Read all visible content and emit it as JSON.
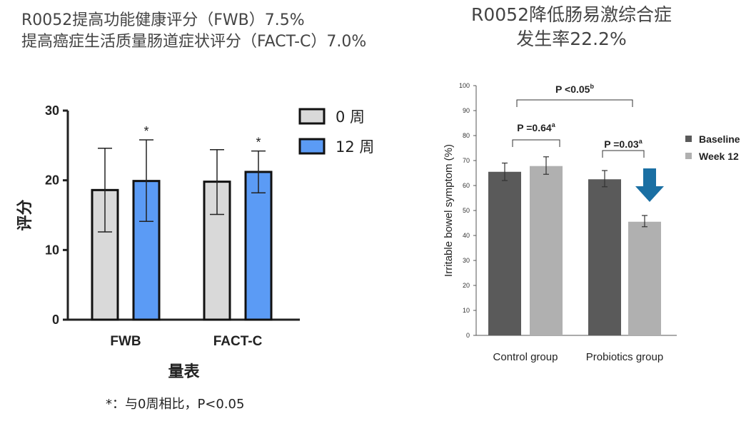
{
  "left_title": {
    "line1": "R0052提高功能健康评分（FWB）7.5%",
    "line2": "提高癌症生活质量肠道症状评分（FACT-C）7.0%"
  },
  "right_title": {
    "line1": "R0052降低肠易激综合症",
    "line2": "发生率22.2%"
  },
  "footnote": "*：与0周相比，P<0.05",
  "colors": {
    "grey_bar": "#d9d9d9",
    "blue_bar": "#5b9bf5",
    "dark_bar": "#5a5a5a",
    "light_bar": "#b0b0b0",
    "arrow": "#1a6fa3"
  },
  "chart_data": [
    {
      "type": "bar",
      "categories": [
        "FWB",
        "FACT-C"
      ],
      "xlabel": "量表",
      "ylabel": "评分",
      "ylim": [
        0,
        30
      ],
      "yticks": [
        "0",
        "10",
        "20",
        "30"
      ],
      "legend_position": "top-right",
      "series": [
        {
          "name": "0 周",
          "values": [
            18.6,
            19.8
          ],
          "error_low": [
            12.6,
            15.1
          ],
          "error_high": [
            24.6,
            24.4
          ],
          "significance": [
            "",
            ""
          ]
        },
        {
          "name": "12 周",
          "values": [
            19.9,
            21.2
          ],
          "error_low": [
            14.1,
            18.2
          ],
          "error_high": [
            25.8,
            24.2
          ],
          "significance": [
            "*",
            "*"
          ]
        }
      ]
    },
    {
      "type": "bar",
      "categories": [
        "Control group",
        "Probiotics group"
      ],
      "xlabel": "",
      "ylabel": "Irritable bowel symptom (%)",
      "ylim": [
        0,
        100
      ],
      "yticks": [
        "0",
        "10",
        "20",
        "30",
        "40",
        "50",
        "60",
        "70",
        "80",
        "90",
        "100"
      ],
      "legend_position": "right",
      "series": [
        {
          "name": "Baseline",
          "values": [
            65.5,
            62.5
          ],
          "error_low": [
            62,
            59.5
          ],
          "error_high": [
            69,
            66
          ]
        },
        {
          "name": "Week 12",
          "values": [
            67.8,
            45.5
          ],
          "error_low": [
            64.5,
            43.5
          ],
          "error_high": [
            71.5,
            48
          ]
        }
      ],
      "annotations": [
        {
          "text": "P =0.64",
          "sup": "a",
          "between": "Control group"
        },
        {
          "text": "P =0.03",
          "sup": "a",
          "between": "Probiotics group"
        },
        {
          "text": "P <0.05",
          "sup": "b",
          "between": "Week 12 across groups"
        }
      ]
    }
  ]
}
